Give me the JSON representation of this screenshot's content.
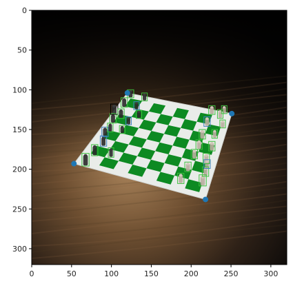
{
  "image_axes": {
    "x_ticks": [
      "0",
      "50",
      "100",
      "150",
      "200",
      "250",
      "300"
    ],
    "y_ticks": [
      "0",
      "50",
      "100",
      "150",
      "200",
      "250",
      "300"
    ],
    "x_range": [
      0,
      320
    ],
    "y_range": [
      0,
      320
    ],
    "y_inverted": true
  },
  "board": {
    "corner_markers": [
      {
        "x": 53,
        "y": 193
      },
      {
        "x": 218,
        "y": 238
      },
      {
        "x": 251,
        "y": 130
      },
      {
        "x": 120,
        "y": 104
      }
    ],
    "square_colors": {
      "light": "#e9ece9",
      "dark": "#0d8a22"
    }
  },
  "detections": [
    {
      "x": 63,
      "y": 180,
      "w": 9,
      "h": 16,
      "color": "#3fbf3f"
    },
    {
      "x": 75,
      "y": 169,
      "w": 8,
      "h": 14,
      "color": "#3fbf3f"
    },
    {
      "x": 86,
      "y": 158,
      "w": 8,
      "h": 13,
      "color": "#3f7fbf"
    },
    {
      "x": 96,
      "y": 173,
      "w": 7,
      "h": 12,
      "color": "#3fbf3f"
    },
    {
      "x": 88,
      "y": 147,
      "w": 8,
      "h": 12,
      "color": "#3f7fbf"
    },
    {
      "x": 95,
      "y": 142,
      "w": 7,
      "h": 11,
      "color": "#3fbf3f"
    },
    {
      "x": 98,
      "y": 130,
      "w": 8,
      "h": 12,
      "color": "#3fbf3f"
    },
    {
      "x": 99,
      "y": 118,
      "w": 9,
      "h": 13,
      "color": "#000000"
    },
    {
      "x": 108,
      "y": 124,
      "w": 8,
      "h": 12,
      "color": "#3fbf3f"
    },
    {
      "x": 112,
      "y": 110,
      "w": 8,
      "h": 12,
      "color": "#3fbf3f"
    },
    {
      "x": 120,
      "y": 100,
      "w": 8,
      "h": 10,
      "color": "#3fbf3f"
    },
    {
      "x": 128,
      "y": 115,
      "w": 7,
      "h": 10,
      "color": "#3f7fbf"
    },
    {
      "x": 138,
      "y": 104,
      "w": 7,
      "h": 10,
      "color": "#3fbf3f"
    },
    {
      "x": 110,
      "y": 145,
      "w": 7,
      "h": 10,
      "color": "#3fbf3f"
    },
    {
      "x": 118,
      "y": 134,
      "w": 7,
      "h": 10,
      "color": "#3f7fbf"
    },
    {
      "x": 131,
      "y": 126,
      "w": 7,
      "h": 10,
      "color": "#3fbf3f"
    },
    {
      "x": 183,
      "y": 205,
      "w": 8,
      "h": 13,
      "color": "#3fbf3f"
    },
    {
      "x": 192,
      "y": 191,
      "w": 8,
      "h": 12,
      "color": "#3fbf3f"
    },
    {
      "x": 200,
      "y": 175,
      "w": 8,
      "h": 12,
      "color": "#3fbf3f"
    },
    {
      "x": 206,
      "y": 163,
      "w": 8,
      "h": 12,
      "color": "#3fbf3f"
    },
    {
      "x": 210,
      "y": 150,
      "w": 8,
      "h": 12,
      "color": "#3fbf3f"
    },
    {
      "x": 216,
      "y": 134,
      "w": 8,
      "h": 12,
      "color": "#3f7fbf"
    },
    {
      "x": 222,
      "y": 120,
      "w": 8,
      "h": 11,
      "color": "#3fbf3f"
    },
    {
      "x": 233,
      "y": 125,
      "w": 7,
      "h": 11,
      "color": "#3fbf3f"
    },
    {
      "x": 238,
      "y": 120,
      "w": 7,
      "h": 10,
      "color": "#3fbf3f"
    },
    {
      "x": 226,
      "y": 150,
      "w": 7,
      "h": 11,
      "color": "#3fbf3f"
    },
    {
      "x": 222,
      "y": 165,
      "w": 8,
      "h": 12,
      "color": "#3fbf3f"
    },
    {
      "x": 215,
      "y": 180,
      "w": 8,
      "h": 13,
      "color": "#3fbf3f"
    },
    {
      "x": 210,
      "y": 207,
      "w": 9,
      "h": 14,
      "color": "#3fbf3f"
    },
    {
      "x": 214,
      "y": 197,
      "w": 8,
      "h": 12,
      "color": "#3fbf3f"
    },
    {
      "x": 216,
      "y": 188,
      "w": 8,
      "h": 11,
      "color": "#3f7fbf"
    },
    {
      "x": 236,
      "y": 138,
      "w": 7,
      "h": 10,
      "color": "#3fbf3f"
    }
  ]
}
